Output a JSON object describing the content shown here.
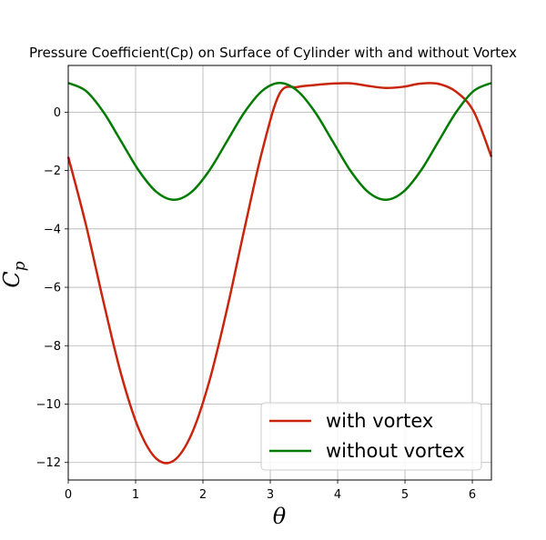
{
  "chart_data": {
    "type": "line",
    "title": "Pressure Coefficient(Cp) on Surface of Cylinder with and without Vortex",
    "xlabel": "θ",
    "ylabel_main": "C",
    "ylabel_sub": "p",
    "xlim": [
      0,
      6.2832
    ],
    "ylim": [
      -12.6,
      1.6
    ],
    "xticks": [
      0,
      1,
      2,
      3,
      4,
      5,
      6
    ],
    "yticks": [
      0,
      -2,
      -4,
      -6,
      -8,
      -10,
      -12
    ],
    "xtick_labels": [
      "0",
      "1",
      "2",
      "3",
      "4",
      "5",
      "6"
    ],
    "ytick_labels": [
      "0",
      "−2",
      "−4",
      "−6",
      "−8",
      "−10",
      "−12"
    ],
    "grid": true,
    "legend_position": "bottom-right",
    "x": [
      0,
      0.2618,
      0.5236,
      0.7854,
      1.0472,
      1.309,
      1.5708,
      1.8326,
      2.0944,
      2.3562,
      2.618,
      2.8798,
      3.1416,
      3.4034,
      3.6652,
      3.927,
      4.1888,
      4.4506,
      4.7124,
      4.9742,
      5.236,
      5.4978,
      5.7596,
      6.0214,
      6.2832
    ],
    "series": [
      {
        "name": "with vortex",
        "color": "#c8250e",
        "values": [
          -1.53,
          -3.85,
          -6.5,
          -8.98,
          -10.85,
          -11.87,
          -11.93,
          -11.02,
          -9.22,
          -6.76,
          -3.98,
          -1.33,
          0.65,
          0.86,
          0.93,
          0.98,
          0.99,
          0.9,
          0.83,
          0.87,
          0.98,
          0.97,
          0.7,
          0.02,
          -1.53
        ]
      },
      {
        "name": "without vortex",
        "color": "#007b00",
        "values": [
          1.0,
          0.73,
          0.0,
          -1.0,
          -2.0,
          -2.73,
          -3.0,
          -2.73,
          -2.0,
          -1.0,
          0.0,
          0.73,
          1.0,
          0.73,
          0.0,
          -1.0,
          -2.0,
          -2.73,
          -3.0,
          -2.73,
          -2.0,
          -1.0,
          0.0,
          0.73,
          1.0
        ]
      }
    ]
  }
}
